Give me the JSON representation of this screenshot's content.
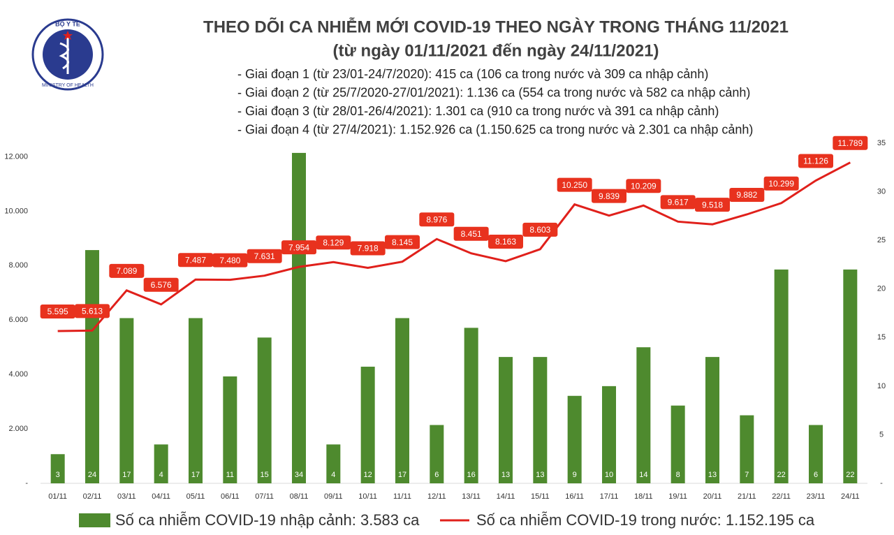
{
  "logo": {
    "top": "BỘ Y TẾ",
    "bottom": "MINISTRY OF HEALTH"
  },
  "chart_data": {
    "type": "bar_line",
    "title": "THEO DÕI CA NHIỄM MỚI COVID-19 THEO NGÀY TRONG THÁNG 11/2021",
    "subtitle": "(từ ngày 01/11/2021 đến ngày 24/11/2021)",
    "annotations": [
      "- Giai đoạn 1 (từ 23/01-24/7/2020): 415 ca (106 ca trong nước và 309 ca nhập cảnh)",
      "- Giai đoạn 2 (từ 25/7/2020-27/01/2021): 1.136 ca (554 ca trong nước và 582 ca nhập cảnh)",
      "- Giai đoạn 3 (từ 28/01-26/4/2021): 1.301 ca (910 ca trong nước và 391 ca nhập cảnh)",
      "- Giai đoạn 4 (từ 27/4/2021): 1.152.926 ca (1.150.625 ca trong nước và 2.301 ca nhập cảnh)"
    ],
    "categories": [
      "01/11",
      "02/11",
      "03/11",
      "04/11",
      "05/11",
      "06/11",
      "07/11",
      "08/11",
      "09/11",
      "10/11",
      "11/11",
      "12/11",
      "13/11",
      "14/11",
      "15/11",
      "16/11",
      "17/11",
      "18/11",
      "19/11",
      "20/11",
      "21/11",
      "22/11",
      "23/11",
      "24/11"
    ],
    "series": [
      {
        "name": "Số ca nhiễm COVID-19 nhập cảnh: 3.583 ca",
        "type": "bar",
        "axis": "y2",
        "color": "#4e8a2e",
        "values": [
          3,
          24,
          17,
          4,
          17,
          11,
          15,
          34,
          4,
          12,
          17,
          6,
          16,
          13,
          13,
          9,
          10,
          14,
          8,
          13,
          7,
          22,
          6,
          22
        ]
      },
      {
        "name": "Số ca nhiễm COVID-19 trong nước: 1.152.195 ca",
        "type": "line",
        "color": "#e0201b",
        "values": [
          5595,
          5613,
          7089,
          6576,
          7487,
          7480,
          7631,
          7954,
          8129,
          7918,
          8145,
          8976,
          8451,
          8163,
          8603,
          10250,
          9839,
          10209,
          9617,
          9518,
          9882,
          10299,
          11126,
          11789
        ],
        "value_labels": [
          "5.595",
          "5.613",
          "7.089",
          "6.576",
          "7.487",
          "7.480",
          "7.631",
          "7.954",
          "8.129",
          "7.918",
          "8.145",
          "8.976",
          "8.451",
          "8.163",
          "8.603",
          "10.250",
          "9.839",
          "10.209",
          "9.617",
          "9.518",
          "9.882",
          "10.299",
          "11.126",
          "11.789"
        ]
      }
    ],
    "ylim": [
      0,
      12500
    ],
    "yticks": [
      {
        "value": 0,
        "label": "-"
      },
      {
        "value": 2000,
        "label": "2.000"
      },
      {
        "value": 4000,
        "label": "4.000"
      },
      {
        "value": 6000,
        "label": "6.000"
      },
      {
        "value": 8000,
        "label": "8.000"
      },
      {
        "value": 10000,
        "label": "10.000"
      },
      {
        "value": 12000,
        "label": "12.000"
      }
    ],
    "y2lim": [
      0,
      35
    ],
    "y2ticks": [
      {
        "value": 0,
        "label": "-"
      },
      5,
      10,
      15,
      20,
      25,
      30,
      35
    ],
    "legend": "bottom"
  }
}
